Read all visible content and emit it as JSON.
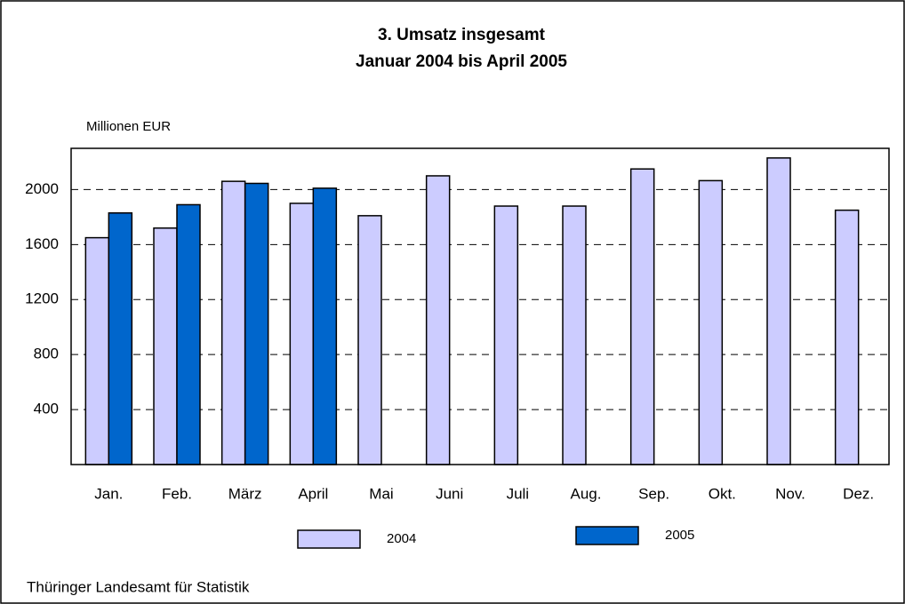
{
  "chart_data": {
    "type": "bar",
    "title": "3. Umsatz insgesamt",
    "subtitle": "Januar 2004 bis April 2005",
    "y_label": "Millionen EUR",
    "source": "Thüringer Landesamt für Statistik",
    "categories": [
      "Jan.",
      "Feb.",
      "März",
      "April",
      "Mai",
      "Juni",
      "Juli",
      "Aug.",
      "Sep.",
      "Okt.",
      "Nov.",
      "Dez."
    ],
    "series": [
      {
        "name": "2004",
        "color": "#ccccff",
        "values": [
          1650,
          1720,
          2060,
          1900,
          1810,
          2100,
          1880,
          1880,
          2150,
          2065,
          2230,
          1850
        ]
      },
      {
        "name": "2005",
        "color": "#0066cc",
        "values": [
          1830,
          1890,
          2045,
          2010,
          null,
          null,
          null,
          null,
          null,
          null,
          null,
          null
        ]
      }
    ],
    "ylim": [
      0,
      2300
    ],
    "yticks": [
      400,
      800,
      1200,
      1600,
      2000
    ],
    "grid": true
  }
}
